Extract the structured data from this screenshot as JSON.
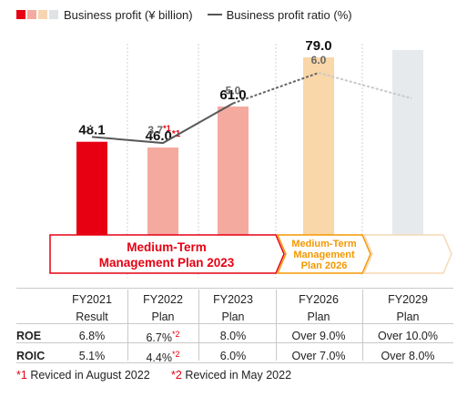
{
  "legend": {
    "bar_label": "Business profit (¥ billion)",
    "line_label": "Business profit ratio (%)",
    "swatch_colors": [
      "#e60012",
      "#f5aaa0",
      "#f6d5b0",
      "#dfe3e6"
    ]
  },
  "chart_data": {
    "type": "bar",
    "categories": [
      "FY2021",
      "FY2022",
      "FY2023",
      "FY2026",
      "FY2029"
    ],
    "series": [
      {
        "name": "Business profit (¥ billion)",
        "values": [
          48.1,
          46.0,
          61.0,
          79.0,
          null
        ],
        "value_labels": [
          "48.1",
          "46.0",
          "61.0",
          "79.0",
          ""
        ],
        "value_label_marks": [
          "",
          "*1",
          "",
          "",
          ""
        ],
        "colors": [
          "#e60012",
          "#f5aaa0",
          "#f5aaa0",
          "#fad7a8",
          "#e6eaec"
        ]
      },
      {
        "name": "Business profit ratio (%)",
        "type": "line",
        "values": [
          3.9,
          3.7,
          5.0,
          6.0,
          null
        ],
        "value_labels": [
          "3.9",
          "3.7",
          "5.0",
          "6.0",
          ""
        ],
        "value_label_marks": [
          "",
          "*1",
          "",
          "",
          ""
        ]
      }
    ],
    "ylim": [
      0,
      90
    ],
    "grid": false,
    "plans": [
      {
        "label_lines": [
          "Medium-Term",
          "Management Plan 2023"
        ],
        "color": "#e60012"
      },
      {
        "label_lines": [
          "Medium-Term",
          "Management",
          "Plan 2026"
        ],
        "color": "#f39800"
      }
    ]
  },
  "table": {
    "headers": [
      "FY2021",
      "FY2022",
      "FY2023",
      "FY2026",
      "FY2029"
    ],
    "status": [
      "Result",
      "Plan",
      "Plan",
      "Plan",
      "Plan"
    ],
    "rows": [
      {
        "label": "ROE",
        "values": [
          "6.8%",
          "6.7%",
          "8.0%",
          "Over 9.0%",
          "Over 10.0%"
        ],
        "marks": [
          "",
          "*2",
          "",
          "",
          ""
        ]
      },
      {
        "label": "ROIC",
        "values": [
          "5.1%",
          "4.4%",
          "6.0%",
          "Over 7.0%",
          "Over 8.0%"
        ],
        "marks": [
          "",
          "*2",
          "",
          "",
          ""
        ]
      }
    ]
  },
  "footnotes": [
    {
      "mark": "*1",
      "text": "Reviced in August 2022"
    },
    {
      "mark": "*2",
      "text": "Reviced in May 2022"
    }
  ]
}
